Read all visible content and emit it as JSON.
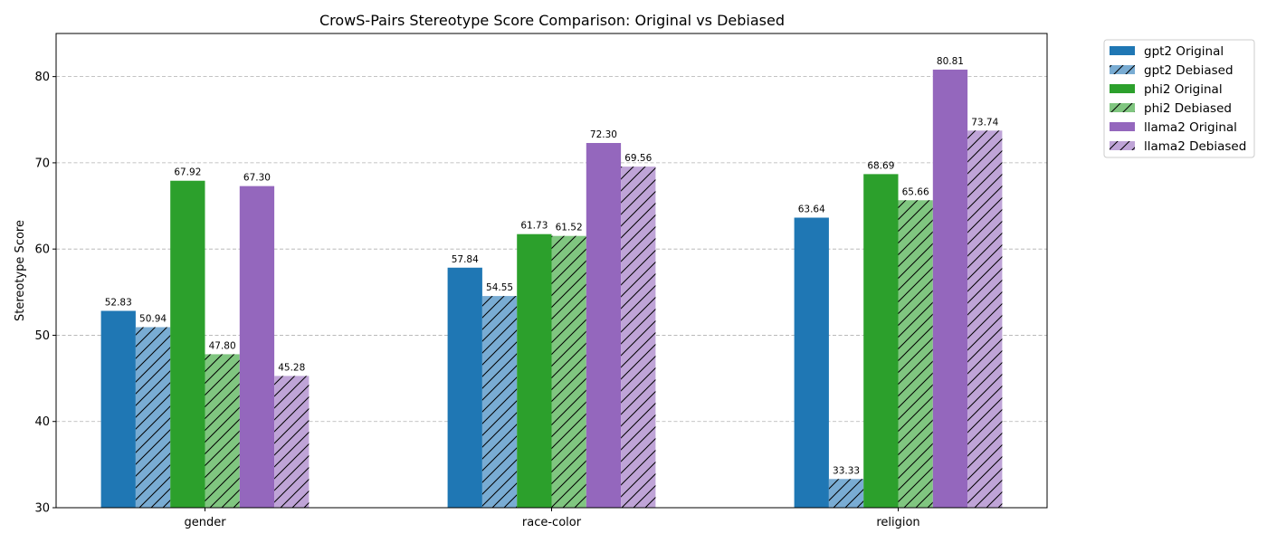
{
  "chart_data": {
    "type": "bar",
    "title": "CrowS-Pairs Stereotype Score Comparison: Original vs Debiased",
    "xlabel": "",
    "ylabel": "Stereotype Score",
    "ylim": [
      30,
      85
    ],
    "yticks": [
      30,
      40,
      50,
      60,
      70,
      80
    ],
    "grid": "y-dashed",
    "legend_position": "outside-top-right",
    "categories": [
      "gender",
      "race-color",
      "religion"
    ],
    "series": [
      {
        "name": "gpt2 Original",
        "values": [
          52.83,
          57.84,
          63.64
        ],
        "labels": [
          "52.83",
          "57.84",
          "63.64"
        ],
        "color": "#1f77b4",
        "hatch": false
      },
      {
        "name": "gpt2 Debiased",
        "values": [
          50.94,
          54.55,
          33.33
        ],
        "labels": [
          "50.94",
          "54.55",
          "33.33"
        ],
        "color": "#79acd3",
        "hatch": true
      },
      {
        "name": "phi2 Original",
        "values": [
          67.92,
          61.73,
          68.69
        ],
        "labels": [
          "67.92",
          "61.73",
          "68.69"
        ],
        "color": "#2ca02c",
        "hatch": false
      },
      {
        "name": "phi2 Debiased",
        "values": [
          47.8,
          61.52,
          65.66
        ],
        "labels": [
          "47.80",
          "61.52",
          "65.66"
        ],
        "color": "#80c680",
        "hatch": true
      },
      {
        "name": "llama2 Original",
        "values": [
          67.3,
          72.3,
          80.81
        ],
        "labels": [
          "67.30",
          "72.30",
          "80.81"
        ],
        "color": "#9467bd",
        "hatch": false
      },
      {
        "name": "llama2 Debiased",
        "values": [
          45.28,
          69.56,
          73.74
        ],
        "labels": [
          "45.28",
          "69.56",
          "73.74"
        ],
        "color": "#bfa4d7",
        "hatch": true
      }
    ]
  }
}
